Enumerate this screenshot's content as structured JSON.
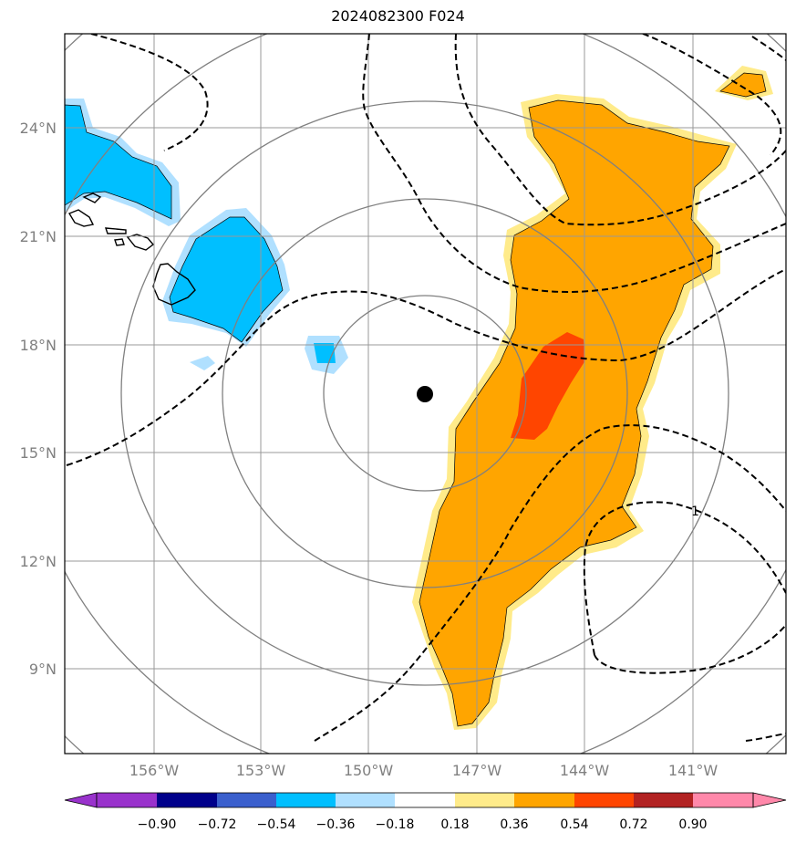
{
  "title": "2024082300 F024",
  "map": {
    "lat_ticks": [
      {
        "value": 24,
        "label": "24°N"
      },
      {
        "value": 21,
        "label": "21°N"
      },
      {
        "value": 18,
        "label": "18°N"
      },
      {
        "value": 15,
        "label": "15°N"
      },
      {
        "value": 12,
        "label": "12°N"
      },
      {
        "value": 9,
        "label": "9°N"
      }
    ],
    "lon_ticks": [
      {
        "value": -156,
        "label": "156°W"
      },
      {
        "value": -153,
        "label": "153°W"
      },
      {
        "value": -150,
        "label": "150°W"
      },
      {
        "value": -147,
        "label": "147°W"
      },
      {
        "value": -144,
        "label": "144°W"
      },
      {
        "value": -141,
        "label": "141°W"
      }
    ],
    "center": {
      "lon": -148.5,
      "lat": 16.6
    },
    "contour_label": "1"
  },
  "colorbar": {
    "levels": [
      "−0.90",
      "−0.72",
      "−0.54",
      "−0.36",
      "−0.18",
      "0.18",
      "0.36",
      "0.54",
      "0.72",
      "0.90"
    ],
    "colors": [
      "#9932cc",
      "#00008b",
      "#3a5fcd",
      "#00bfff",
      "#b0e0ff",
      "#ffffff",
      "#ffeb8a",
      "#ffa500",
      "#ff4500",
      "#b22222",
      "#ff88aa"
    ]
  },
  "colors": {
    "blue_strong": "#00bfff",
    "blue_light": "#b0e0ff",
    "yellow": "#ffeb8a",
    "orange": "#ffa500",
    "red": "#ff4500",
    "grid": "#999999",
    "range_ring": "#808080"
  }
}
